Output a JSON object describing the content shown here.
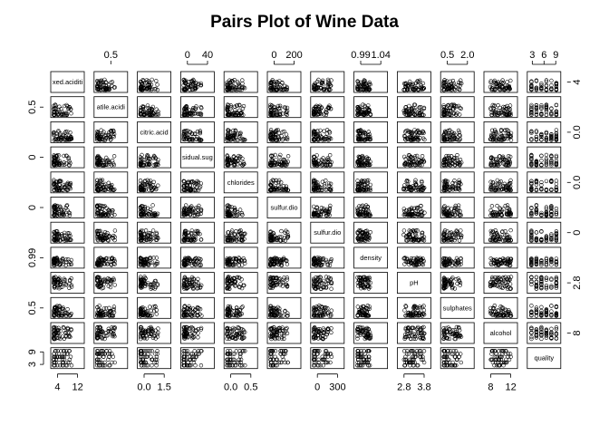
{
  "chart_data": {
    "type": "scatter",
    "subtype": "pairs-matrix",
    "title": "Pairs Plot of Wine Data",
    "variables": [
      {
        "name": "fixed.acidity",
        "label": "xed.aciditi",
        "range": [
          3.8,
          15.9
        ]
      },
      {
        "name": "volatile.acidity",
        "label": "atile.acidi",
        "range": [
          0.08,
          1.58
        ]
      },
      {
        "name": "citric.acid",
        "label": "citric.acid",
        "range": [
          0.0,
          1.66
        ]
      },
      {
        "name": "residual.sugar",
        "label": "sidual.sug",
        "range": [
          0.6,
          65.8
        ]
      },
      {
        "name": "chlorides",
        "label": "chlorides",
        "range": [
          0.009,
          0.611
        ]
      },
      {
        "name": "free.sulfur.dioxide",
        "label": "sulfur.dio",
        "range": [
          1,
          289
        ]
      },
      {
        "name": "total.sulfur.dioxide",
        "label": "sulfur.dio",
        "range": [
          6,
          440
        ]
      },
      {
        "name": "density",
        "label": "density",
        "range": [
          0.987,
          1.039
        ]
      },
      {
        "name": "pH",
        "label": "pH",
        "range": [
          2.72,
          4.01
        ]
      },
      {
        "name": "sulphates",
        "label": "sulphates",
        "range": [
          0.22,
          2.0
        ]
      },
      {
        "name": "alcohol",
        "label": "alcohol",
        "range": [
          8.0,
          14.9
        ]
      },
      {
        "name": "quality",
        "label": "quality",
        "range": [
          3,
          9
        ]
      }
    ],
    "top_axis": [
      {
        "column": 1,
        "ticks": [
          "0.5"
        ]
      },
      {
        "column": 3,
        "ticks": [
          "0",
          "40"
        ]
      },
      {
        "column": 5,
        "ticks": [
          "0",
          "200"
        ]
      },
      {
        "column": 7,
        "ticks": [
          "0.99",
          "1.04"
        ]
      },
      {
        "column": 9,
        "ticks": [
          "0.5",
          "2.0"
        ]
      },
      {
        "column": 11,
        "ticks": [
          "3",
          "6",
          "9"
        ]
      }
    ],
    "bottom_axis": [
      {
        "column": 0,
        "ticks": [
          "4",
          "12"
        ]
      },
      {
        "column": 2,
        "ticks": [
          "0.0",
          "1.5"
        ]
      },
      {
        "column": 4,
        "ticks": [
          "0.0",
          "0.5"
        ]
      },
      {
        "column": 6,
        "ticks": [
          "0",
          "300"
        ]
      },
      {
        "column": 8,
        "ticks": [
          "2.8",
          "3.8"
        ]
      },
      {
        "column": 10,
        "ticks": [
          "8",
          "12"
        ]
      }
    ],
    "left_axis": [
      {
        "row": 1,
        "ticks": [
          "0.5"
        ]
      },
      {
        "row": 3,
        "ticks": [
          "0"
        ]
      },
      {
        "row": 5,
        "ticks": [
          "0"
        ]
      },
      {
        "row": 7,
        "ticks": [
          "0.99"
        ]
      },
      {
        "row": 9,
        "ticks": [
          "0.5"
        ]
      },
      {
        "row": 11,
        "ticks": [
          "3",
          "9"
        ]
      }
    ],
    "right_axis": [
      {
        "row": 0,
        "ticks": [
          "4"
        ]
      },
      {
        "row": 2,
        "ticks": [
          "0.0"
        ]
      },
      {
        "row": 4,
        "ticks": [
          "0.0"
        ]
      },
      {
        "row": 6,
        "ticks": [
          "0"
        ]
      },
      {
        "row": 8,
        "ticks": [
          "2.8"
        ]
      },
      {
        "row": 10,
        "ticks": [
          "8"
        ]
      }
    ],
    "marker": "open-circle",
    "grid": false,
    "legend": "none"
  }
}
